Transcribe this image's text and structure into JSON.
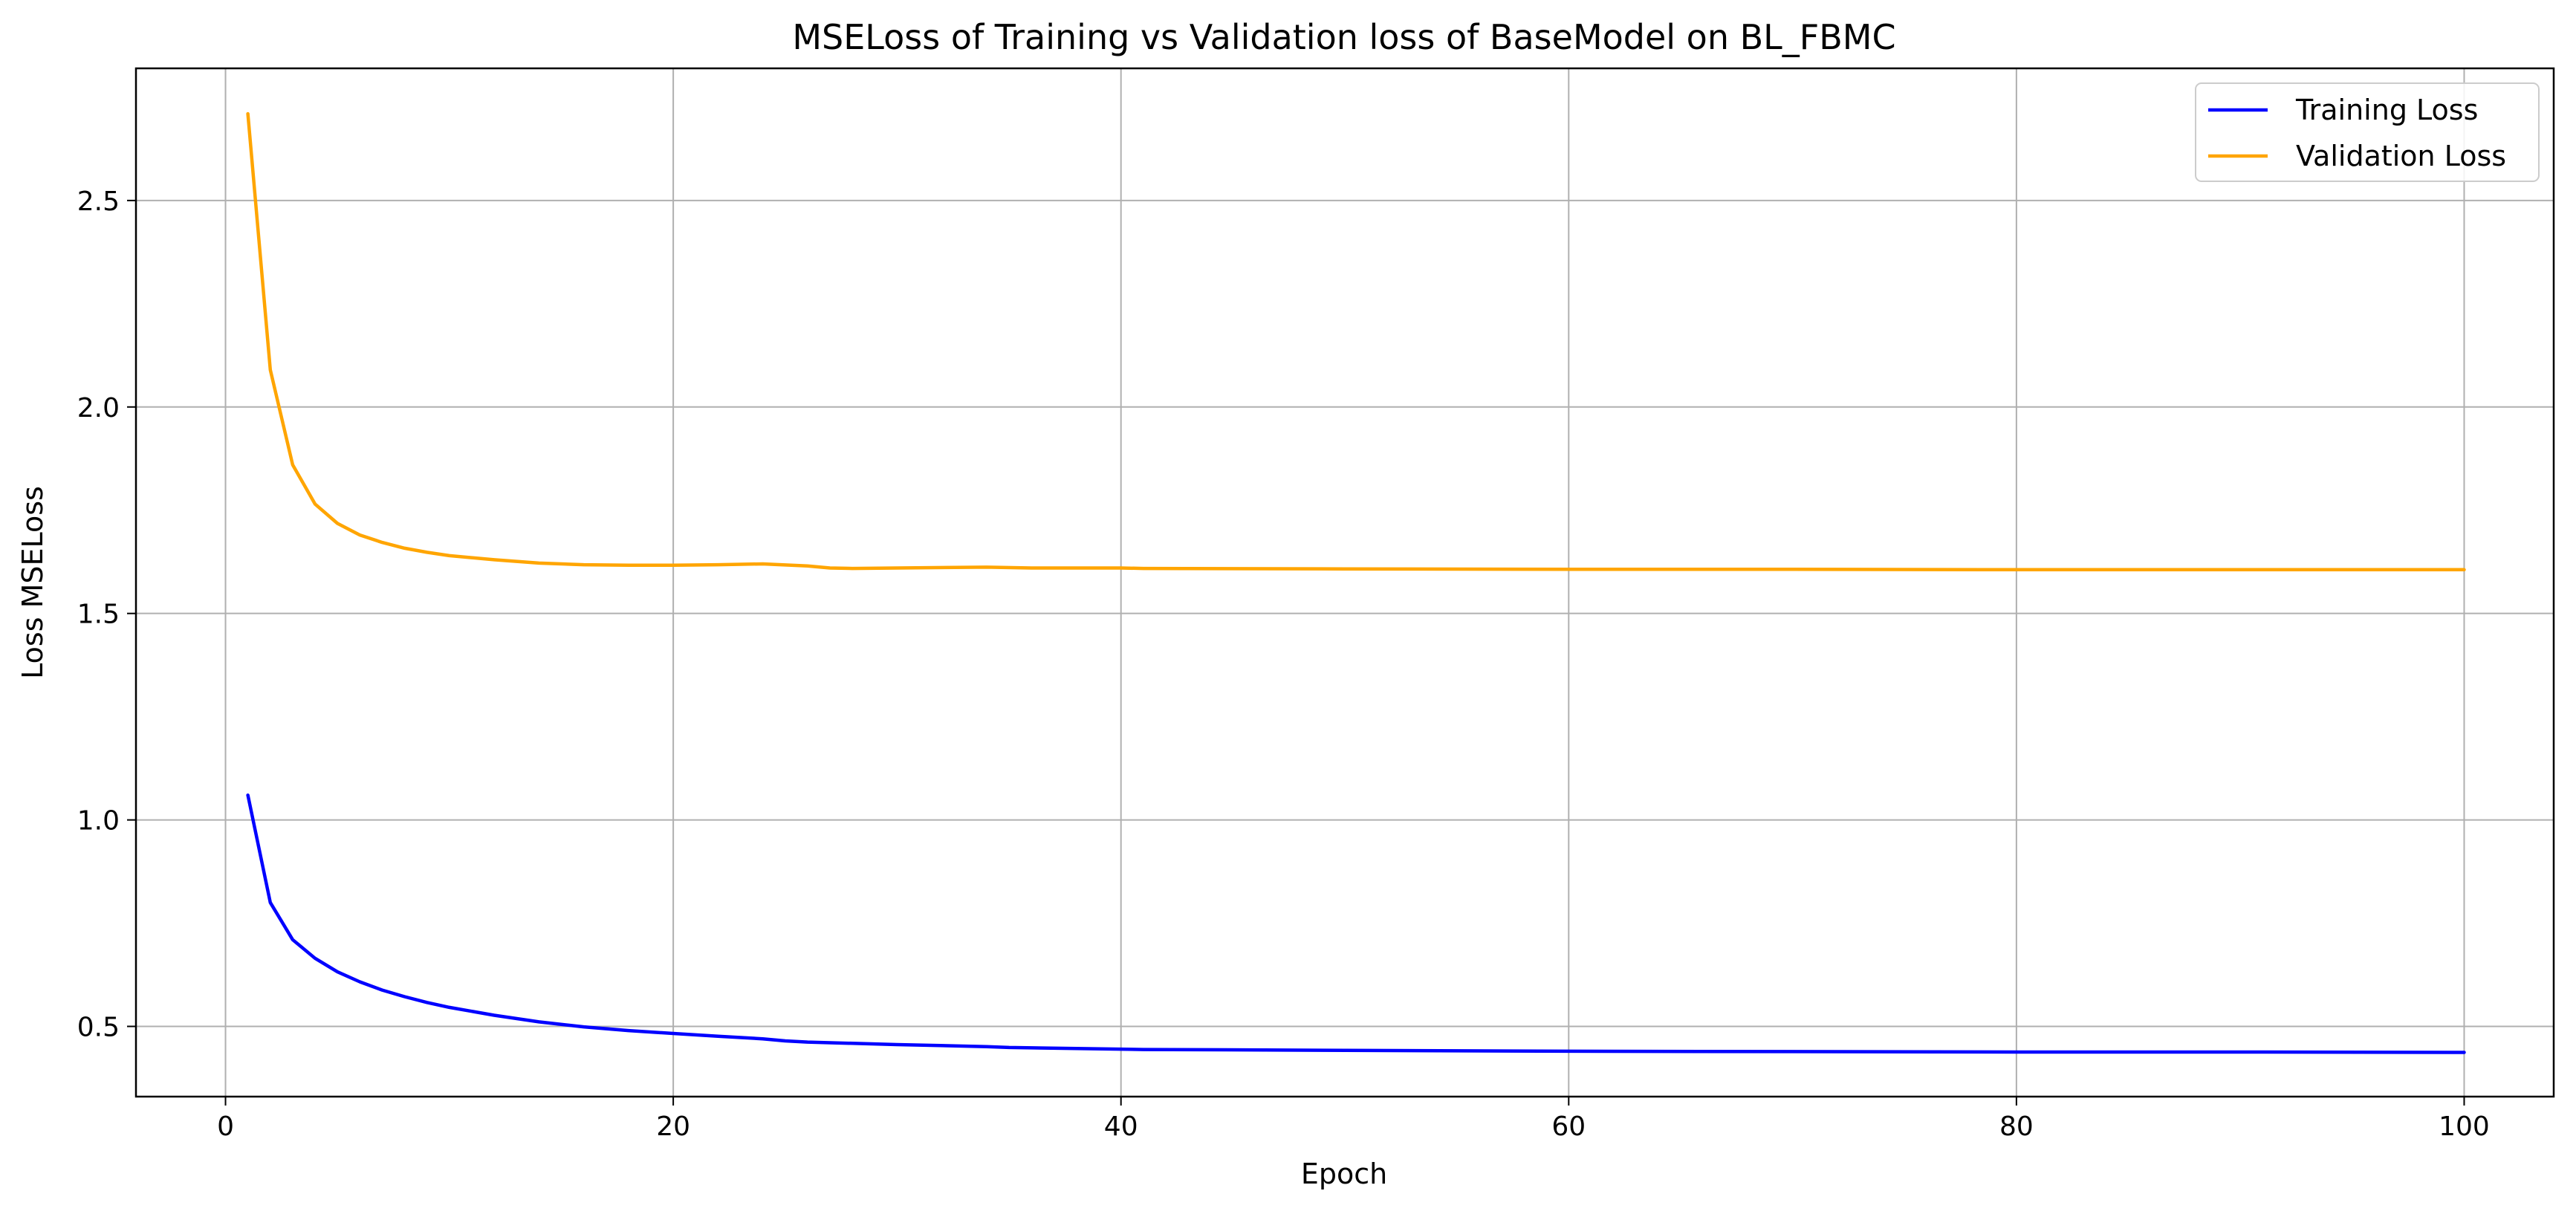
{
  "chart_data": {
    "type": "line",
    "title": "MSELoss of Training vs Validation loss of BaseModel on BL_FBMC",
    "xlabel": "Epoch",
    "ylabel": "Loss MSELoss",
    "xlim": [
      -4,
      104
    ],
    "ylim": [
      0.33,
      2.82
    ],
    "xticks": [
      0,
      20,
      40,
      60,
      80,
      100
    ],
    "xtick_labels": [
      "0",
      "20",
      "40",
      "60",
      "80",
      "100"
    ],
    "yticks": [
      0.5,
      1.0,
      1.5,
      2.0,
      2.5
    ],
    "ytick_labels": [
      "0.5",
      "1.0",
      "1.5",
      "2.0",
      "2.5"
    ],
    "grid": true,
    "legend": "top-right",
    "series": [
      {
        "name": "Training Loss",
        "color": "#0000ff",
        "points": [
          [
            1,
            1.06
          ],
          [
            2,
            0.8
          ],
          [
            3,
            0.71
          ],
          [
            4,
            0.665
          ],
          [
            5,
            0.632
          ],
          [
            6,
            0.608
          ],
          [
            7,
            0.588
          ],
          [
            8,
            0.572
          ],
          [
            9,
            0.558
          ],
          [
            10,
            0.546
          ],
          [
            12,
            0.527
          ],
          [
            14,
            0.511
          ],
          [
            16,
            0.499
          ],
          [
            18,
            0.49
          ],
          [
            20,
            0.483
          ],
          [
            22,
            0.476
          ],
          [
            24,
            0.47
          ],
          [
            25,
            0.465
          ],
          [
            26,
            0.462
          ],
          [
            30,
            0.456
          ],
          [
            34,
            0.451
          ],
          [
            35,
            0.449
          ],
          [
            40,
            0.445
          ],
          [
            41,
            0.444
          ],
          [
            50,
            0.442
          ],
          [
            60,
            0.44
          ],
          [
            70,
            0.439
          ],
          [
            80,
            0.438
          ],
          [
            90,
            0.438
          ],
          [
            100,
            0.437
          ]
        ]
      },
      {
        "name": "Validation Loss",
        "color": "#ffa500",
        "points": [
          [
            1,
            2.71
          ],
          [
            2,
            2.09
          ],
          [
            3,
            1.86
          ],
          [
            4,
            1.765
          ],
          [
            5,
            1.718
          ],
          [
            6,
            1.69
          ],
          [
            7,
            1.672
          ],
          [
            8,
            1.658
          ],
          [
            9,
            1.648
          ],
          [
            10,
            1.64
          ],
          [
            12,
            1.63
          ],
          [
            14,
            1.622
          ],
          [
            16,
            1.618
          ],
          [
            18,
            1.617
          ],
          [
            20,
            1.617
          ],
          [
            22,
            1.618
          ],
          [
            24,
            1.62
          ],
          [
            26,
            1.615
          ],
          [
            27,
            1.61
          ],
          [
            28,
            1.609
          ],
          [
            30,
            1.61
          ],
          [
            34,
            1.612
          ],
          [
            36,
            1.61
          ],
          [
            40,
            1.61
          ],
          [
            41,
            1.609
          ],
          [
            50,
            1.608
          ],
          [
            60,
            1.607
          ],
          [
            70,
            1.607
          ],
          [
            80,
            1.606
          ],
          [
            90,
            1.606
          ],
          [
            100,
            1.606
          ]
        ]
      }
    ]
  }
}
